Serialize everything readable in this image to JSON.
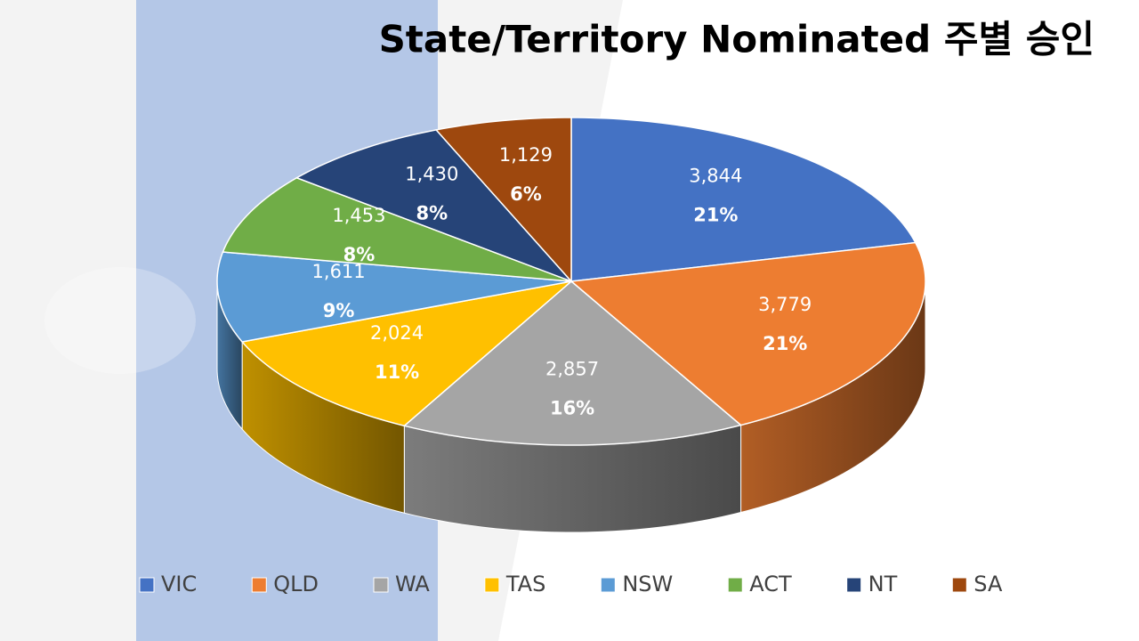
{
  "chart_data": {
    "type": "pie",
    "title": "State/Territory Nominated 주별 승인",
    "categories": [
      "VIC",
      "QLD",
      "WA",
      "TAS",
      "NSW",
      "ACT",
      "NT",
      "SA"
    ],
    "values": [
      3844,
      3779,
      2857,
      2024,
      1611,
      1453,
      1430,
      1129
    ],
    "value_labels": [
      "3,844",
      "3,779",
      "2,857",
      "2,024",
      "1,611",
      "1,453",
      "1,430",
      "1,129"
    ],
    "percent_labels": [
      "21%",
      "21%",
      "16%",
      "11%",
      "9%",
      "8%",
      "8%",
      "6%"
    ],
    "colors": [
      "#4472c4",
      "#ed7d31",
      "#a5a5a5",
      "#ffc000",
      "#5b9bd5",
      "#70ad47",
      "#264478",
      "#9e480e"
    ],
    "legend": "bottom"
  }
}
